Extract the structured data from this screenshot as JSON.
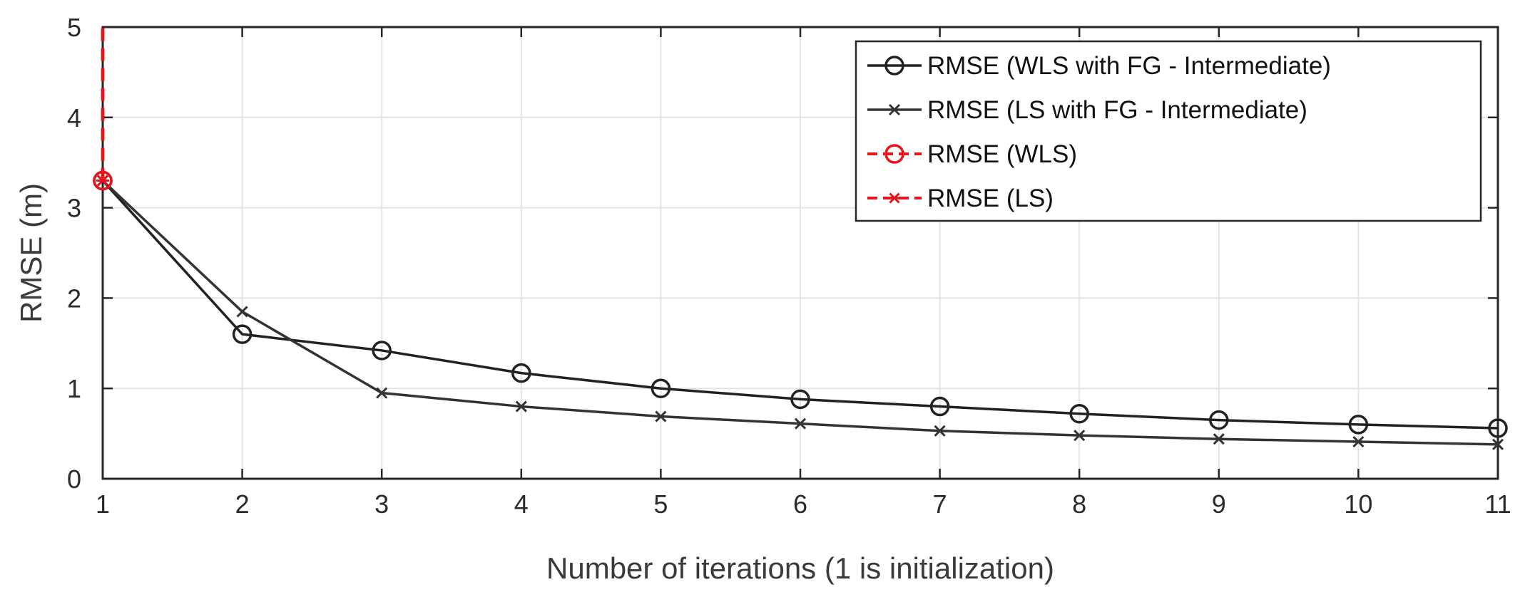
{
  "chart_data": {
    "type": "line",
    "title": "",
    "xlabel": "Number of iterations (1 is initialization)",
    "ylabel": "RMSE (m)",
    "xlim": [
      1,
      11
    ],
    "ylim": [
      0,
      5
    ],
    "xticks": [
      1,
      2,
      3,
      4,
      5,
      6,
      7,
      8,
      9,
      10,
      11
    ],
    "yticks": [
      0,
      1,
      2,
      3,
      4,
      5
    ],
    "grid": true,
    "legend_position": "top-right",
    "series": [
      {
        "name": "RMSE (WLS with FG - Intermediate)",
        "color": "#222222",
        "line_style": "solid",
        "marker": "circle",
        "x": [
          1,
          2,
          3,
          4,
          5,
          6,
          7,
          8,
          9,
          10,
          11
        ],
        "y": [
          3.3,
          1.6,
          1.42,
          1.17,
          1.0,
          0.88,
          0.8,
          0.72,
          0.65,
          0.6,
          0.56
        ]
      },
      {
        "name": "RMSE (LS with FG - Intermediate)",
        "color": "#333333",
        "line_style": "solid",
        "marker": "x",
        "x": [
          1,
          2,
          3,
          4,
          5,
          6,
          7,
          8,
          9,
          10,
          11
        ],
        "y": [
          3.3,
          1.85,
          0.95,
          0.8,
          0.69,
          0.61,
          0.53,
          0.48,
          0.44,
          0.41,
          0.38
        ]
      },
      {
        "name": "RMSE (WLS)",
        "color": "#e8141b",
        "line_style": "dashed",
        "marker": "circle",
        "x": [
          1,
          1
        ],
        "y": [
          3.3,
          5.0
        ]
      },
      {
        "name": "RMSE (LS)",
        "color": "#e8141b",
        "line_style": "dashed",
        "marker": "asterisk",
        "x": [
          1,
          1
        ],
        "y": [
          3.3,
          5.0
        ]
      }
    ]
  }
}
